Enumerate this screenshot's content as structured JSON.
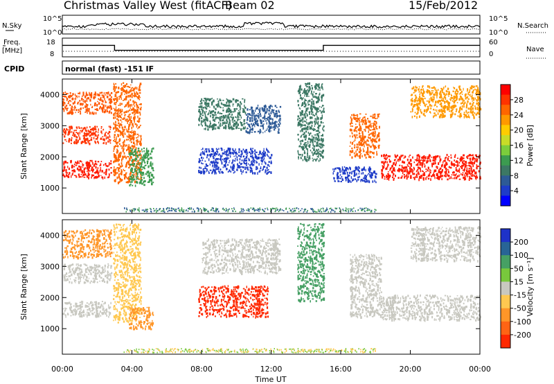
{
  "header": {
    "title": "Christmas Valley West (fitACF)",
    "beam": "Beam 02",
    "date": "15/Feb/2012"
  },
  "status_panels": {
    "nsky_label": "N.Sky",
    "nsearch_label": "N.Search",
    "noise_ticks": [
      "10^5",
      "10^0"
    ],
    "freq_label_1": "Freq.",
    "freq_label_2": "[MHz]",
    "freq_ticks": [
      "18",
      "8"
    ],
    "nave_label": "Nave",
    "nave_ticks": [
      "60",
      "0"
    ],
    "cpid_label": "CPID",
    "cpid_text": "normal (fast) -151 IF"
  },
  "colorbars": {
    "power": {
      "label": "Power [dB]",
      "ticks": [
        "28",
        "24",
        "20",
        "16",
        "12",
        "8",
        "4"
      ],
      "colors": [
        "#ff0000",
        "#ff3300",
        "#ff6600",
        "#ff9900",
        "#ffcc00",
        "#c8dc28",
        "#7ccd3c",
        "#3c9b50",
        "#3c7864",
        "#2d5a96",
        "#1e3cc8",
        "#0000ff"
      ]
    },
    "velocity": {
      "label": "Velocity [m s⁻¹]",
      "ticks": [
        "200",
        "100",
        "50",
        "15",
        "-15",
        "-50",
        "-100",
        "-200"
      ],
      "colors": [
        "#1e32c8",
        "#286496",
        "#46a064",
        "#78c83c",
        "#c8c8c0",
        "#ffc850",
        "#ff9628",
        "#ff6414",
        "#ff2800"
      ]
    }
  },
  "axes": {
    "ylabel": "Slant Range [km]",
    "yticks": [
      "4000",
      "3000",
      "2000",
      "1000"
    ],
    "xticks": [
      "00:00",
      "04:00",
      "08:00",
      "12:00",
      "16:00",
      "20:00",
      "00:00"
    ],
    "xlabel": "Time UT"
  },
  "chart_data": {
    "type": "heatmap",
    "x_range_hours": [
      0,
      24
    ],
    "y_range_km": [
      180,
      4500
    ],
    "cpid_freq_mhz": [
      {
        "from_h": 0,
        "to_h": 3,
        "freq": 15
      },
      {
        "from_h": 3,
        "to_h": 15,
        "freq": 11
      },
      {
        "from_h": 15,
        "to_h": 24,
        "freq": 15
      }
    ],
    "power_regions": [
      {
        "h0": 0.0,
        "h1": 2.8,
        "r0": 2450,
        "r1": 3000,
        "c": "#ff3300"
      },
      {
        "h0": 0.0,
        "h1": 2.8,
        "r0": 3400,
        "r1": 4100,
        "c": "#ff5500"
      },
      {
        "h0": 0.0,
        "h1": 2.8,
        "r0": 1350,
        "r1": 1900,
        "c": "#ff1a00"
      },
      {
        "h0": 2.9,
        "h1": 4.5,
        "r0": 1200,
        "r1": 4400,
        "c": "#ff6600"
      },
      {
        "h0": 3.8,
        "h1": 5.2,
        "r0": 1100,
        "r1": 2300,
        "c": "#3c9b50"
      },
      {
        "h0": 7.8,
        "h1": 10.5,
        "r0": 2900,
        "r1": 3900,
        "c": "#3c7864"
      },
      {
        "h0": 10.5,
        "h1": 12.5,
        "r0": 2800,
        "r1": 3700,
        "c": "#2d5a96"
      },
      {
        "h0": 7.8,
        "h1": 12.0,
        "r0": 1500,
        "r1": 2300,
        "c": "#1e3cc8"
      },
      {
        "h0": 13.5,
        "h1": 15.0,
        "r0": 1900,
        "r1": 4400,
        "c": "#3c7864"
      },
      {
        "h0": 16.5,
        "h1": 18.2,
        "r0": 2000,
        "r1": 3400,
        "c": "#ff6600"
      },
      {
        "h0": 15.5,
        "h1": 18.0,
        "r0": 1200,
        "r1": 1700,
        "c": "#1e3cc8"
      },
      {
        "h0": 18.3,
        "h1": 24.0,
        "r0": 1300,
        "r1": 2100,
        "c": "#ff1a00"
      },
      {
        "h0": 20.0,
        "h1": 24.0,
        "r0": 3300,
        "r1": 4300,
        "c": "#ff9900"
      }
    ],
    "velocity_regions": [
      {
        "h0": 0.0,
        "h1": 2.8,
        "r0": 2500,
        "r1": 3100,
        "c": "#c8c8c0"
      },
      {
        "h0": 0.0,
        "h1": 2.8,
        "r0": 1400,
        "r1": 1900,
        "c": "#c8c8c0"
      },
      {
        "h0": 0.0,
        "h1": 2.8,
        "r0": 3300,
        "r1": 4200,
        "c": "#ff9628"
      },
      {
        "h0": 2.9,
        "h1": 4.5,
        "r0": 1200,
        "r1": 4400,
        "c": "#ffc850"
      },
      {
        "h0": 3.8,
        "h1": 5.2,
        "r0": 1000,
        "r1": 1700,
        "c": "#ff9628"
      },
      {
        "h0": 7.8,
        "h1": 11.8,
        "r0": 1400,
        "r1": 2400,
        "c": "#ff2800"
      },
      {
        "h0": 8.0,
        "h1": 12.5,
        "r0": 2800,
        "r1": 3900,
        "c": "#c8c8c0"
      },
      {
        "h0": 13.5,
        "h1": 15.0,
        "r0": 1900,
        "r1": 4400,
        "c": "#46a064"
      },
      {
        "h0": 16.5,
        "h1": 18.3,
        "r0": 1400,
        "r1": 3400,
        "c": "#c8c8c0"
      },
      {
        "h0": 18.3,
        "h1": 24.0,
        "r0": 1300,
        "r1": 2100,
        "c": "#c8c8c0"
      },
      {
        "h0": 20.0,
        "h1": 24.0,
        "r0": 3200,
        "r1": 4300,
        "c": "#c8c8c0"
      }
    ]
  }
}
